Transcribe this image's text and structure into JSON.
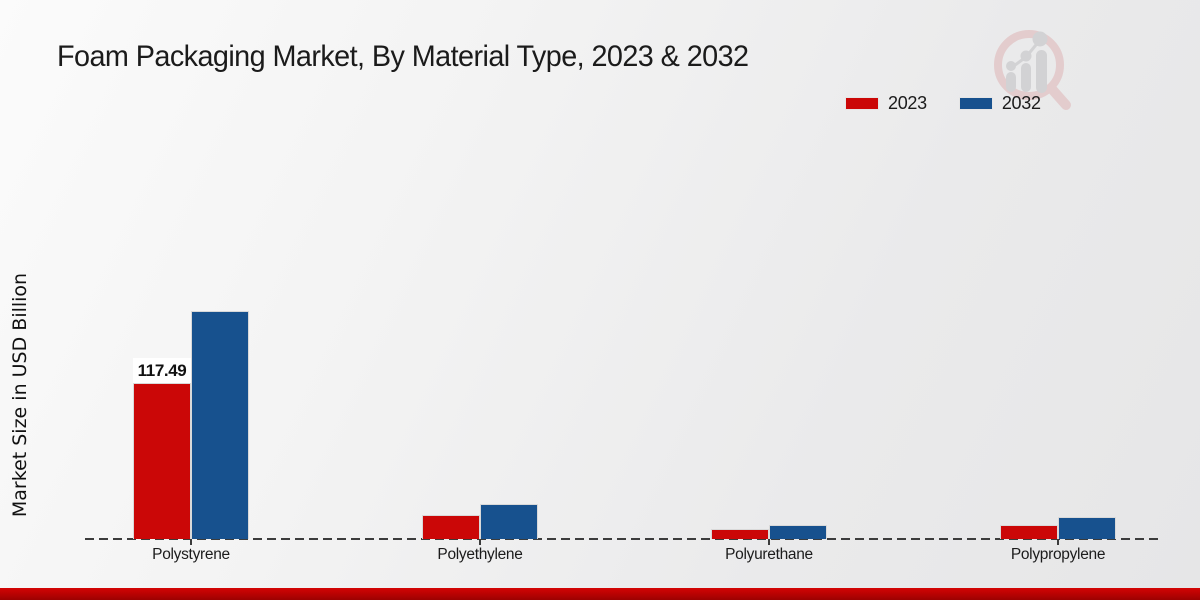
{
  "page": {
    "watermark_icon": "magnifier-growth-chart-logo"
  },
  "chart_data": {
    "type": "bar",
    "title": "Foam Packaging Market, By Material Type, 2023 & 2032",
    "xlabel": "",
    "ylabel": "Market Size in USD Billion",
    "categories": [
      "Polystyrene",
      "Polyethylene",
      "Polyurethane",
      "Polypropylene"
    ],
    "series": [
      {
        "name": "2023",
        "color": "#cb0707",
        "values": [
          117.49,
          18.3,
          7.2,
          10.5
        ],
        "data_labels": [
          "117.49",
          "",
          "",
          ""
        ]
      },
      {
        "name": "2032",
        "color": "#17518e",
        "values": [
          171.7,
          26.4,
          10.2,
          16.6
        ],
        "data_labels": [
          "",
          "",
          "",
          ""
        ]
      }
    ],
    "ylim": [
      0,
      180
    ],
    "grid": false,
    "legend_position": "top-right",
    "baseline_style": "dashed",
    "note": "Only the 2023 Polystyrene bar carries a printed data label (117.49); other values are estimated from bar heights."
  }
}
